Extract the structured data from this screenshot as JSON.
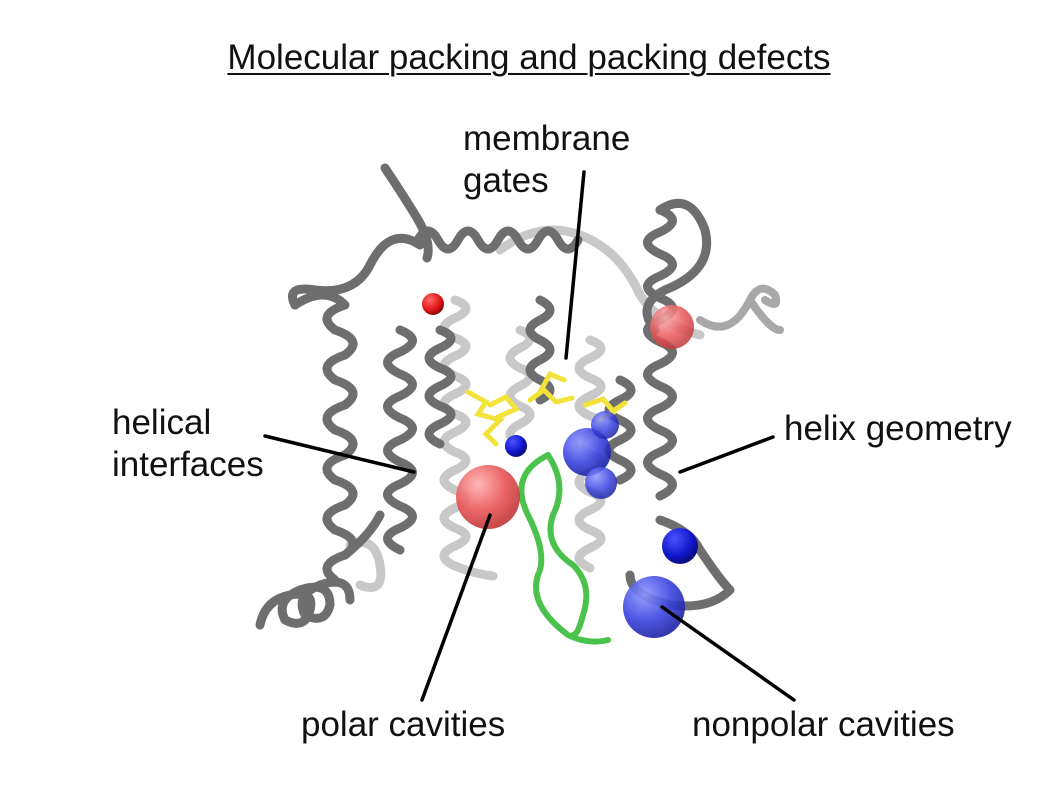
{
  "title": "Molecular packing and packing defects",
  "labels": {
    "membrane_gates": [
      "membrane",
      "gates"
    ],
    "helical_interfaces": [
      "helical",
      "interfaces"
    ],
    "helix_geometry": "helix geometry",
    "polar_cavities": "polar cavities",
    "nonpolar_cavities": "nonpolar cavities"
  },
  "colors": {
    "helix_dark": "#707070",
    "helix_light": "#c4c4c4",
    "polar_sphere": "#e8585a",
    "nonpolar_sphere": "#3b44e0",
    "gate_sticks": "#f2e23a",
    "loop": "#4bc24b",
    "leader": "#000000"
  }
}
